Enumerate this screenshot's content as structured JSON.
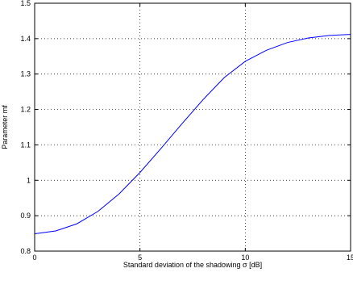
{
  "chart_data": {
    "type": "line",
    "title": "",
    "xlabel": "Standard deviation of the shadowing σ  [dB]",
    "ylabel": "Parameter mf",
    "xlim": [
      0,
      15
    ],
    "ylim": [
      0.8,
      1.5
    ],
    "x_ticks": [
      0,
      5,
      10,
      15
    ],
    "x_tick_labels": [
      "0",
      "5",
      "10",
      "15"
    ],
    "y_ticks": [
      0.8,
      0.9,
      1.0,
      1.1,
      1.2,
      1.3,
      1.4,
      1.5
    ],
    "y_tick_labels": [
      "0.8",
      "0.9",
      "1",
      "1.1",
      "1.2",
      "1.3",
      "1.4",
      "1.5"
    ],
    "grid": true,
    "grid_style": "dotted",
    "legend": "none",
    "series": [
      {
        "color": "#0000ff",
        "x": [
          0,
          1,
          2,
          3,
          4,
          5,
          6,
          7,
          8,
          9,
          10,
          11,
          12,
          13,
          14,
          15
        ],
        "y": [
          0.849,
          0.857,
          0.877,
          0.912,
          0.961,
          1.022,
          1.09,
          1.16,
          1.228,
          1.29,
          1.336,
          1.367,
          1.389,
          1.402,
          1.409,
          1.412
        ]
      }
    ]
  }
}
